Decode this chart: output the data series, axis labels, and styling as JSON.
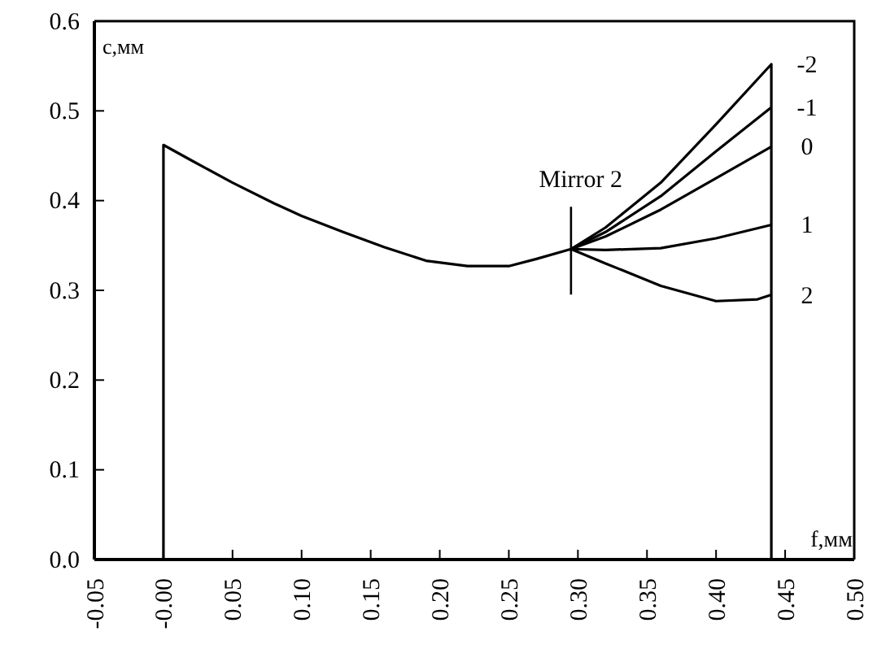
{
  "chart_data": {
    "type": "line",
    "xlabel": "f,мм",
    "ylabel": "c,мм",
    "xlim": [
      -0.05,
      0.5
    ],
    "ylim": [
      0,
      0.6
    ],
    "xticks": [
      -0.05,
      {
        "value": 0,
        "label": "-0.00"
      },
      {
        "value": 0.05,
        "label": "0.05"
      },
      {
        "value": 0.1,
        "label": "0.10"
      },
      {
        "value": 0.15,
        "label": "0.15"
      },
      {
        "value": 0.2,
        "label": "0.20"
      },
      {
        "value": 0.25,
        "label": "0.25"
      },
      {
        "value": 0.3,
        "label": "0.30"
      },
      {
        "value": 0.35,
        "label": "0.35"
      },
      {
        "value": 0.4,
        "label": "0.40"
      },
      {
        "value": 0.45,
        "label": "0.45"
      },
      {
        "value": 0.5,
        "label": "0.50"
      }
    ],
    "yticks": [
      {
        "value": 0,
        "label": "0.0"
      },
      0.1,
      0.2,
      0.3,
      0.4,
      0.5,
      0.6
    ],
    "grid": false,
    "legend": false,
    "marker": "none",
    "line_style": "solid",
    "annotations": [
      {
        "text": "Mirror 2",
        "x": 0.295,
        "y": 0.346
      }
    ],
    "series": [
      {
        "name": "-2",
        "color": "#000000",
        "x": [
          0,
          0,
          0.02,
          0.05,
          0.08,
          0.1,
          0.13,
          0.16,
          0.19,
          0.22,
          0.25,
          0.27,
          0.295,
          0.32,
          0.36,
          0.4,
          0.44,
          0.44
        ],
        "values": [
          0,
          0.462,
          0.445,
          0.42,
          0.397,
          0.383,
          0.365,
          0.348,
          0.333,
          0.327,
          0.327,
          0.335,
          0.346,
          0.37,
          0.42,
          0.485,
          0.552,
          0
        ]
      },
      {
        "name": "-1",
        "color": "#000000",
        "x": [
          0.295,
          0.32,
          0.36,
          0.4,
          0.44
        ],
        "values": [
          0.346,
          0.365,
          0.405,
          0.455,
          0.504
        ]
      },
      {
        "name": "0",
        "color": "#000000",
        "x": [
          0.295,
          0.32,
          0.36,
          0.4,
          0.44
        ],
        "values": [
          0.346,
          0.36,
          0.39,
          0.425,
          0.46
        ]
      },
      {
        "name": "1",
        "color": "#000000",
        "x": [
          0.295,
          0.32,
          0.36,
          0.4,
          0.44
        ],
        "values": [
          0.346,
          0.345,
          0.347,
          0.358,
          0.373
        ]
      },
      {
        "name": "2",
        "color": "#000000",
        "x": [
          0.295,
          0.32,
          0.36,
          0.4,
          0.43,
          0.44
        ],
        "values": [
          0.346,
          0.33,
          0.305,
          0.288,
          0.29,
          0.295
        ]
      }
    ]
  }
}
